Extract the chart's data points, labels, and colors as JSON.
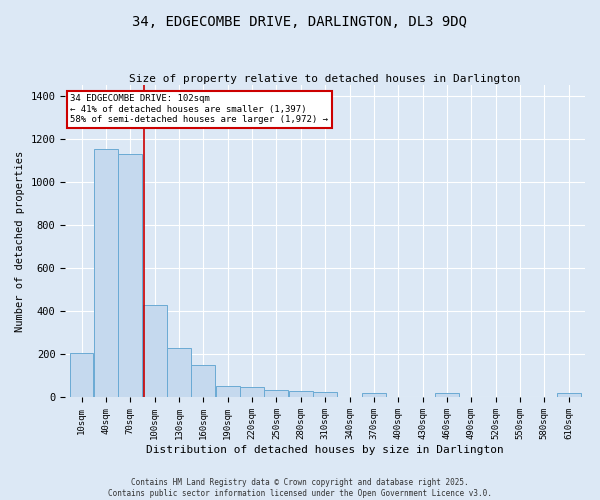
{
  "title": "34, EDGECOMBE DRIVE, DARLINGTON, DL3 9DQ",
  "subtitle": "Size of property relative to detached houses in Darlington",
  "xlabel": "Distribution of detached houses by size in Darlington",
  "ylabel": "Number of detached properties",
  "footer_line1": "Contains HM Land Registry data © Crown copyright and database right 2025.",
  "footer_line2": "Contains public sector information licensed under the Open Government Licence v3.0.",
  "bar_color": "#c5d9ee",
  "bar_edge_color": "#6aaad4",
  "background_color": "#dce8f5",
  "grid_color": "#ffffff",
  "vline_color": "#cc0000",
  "vline_x": 102,
  "annotation_text": "34 EDGECOMBE DRIVE: 102sqm\n← 41% of detached houses are smaller (1,397)\n58% of semi-detached houses are larger (1,972) →",
  "annotation_box_color": "#ffffff",
  "annotation_border_color": "#cc0000",
  "categories": [
    "10sqm",
    "40sqm",
    "70sqm",
    "100sqm",
    "130sqm",
    "160sqm",
    "190sqm",
    "220sqm",
    "250sqm",
    "280sqm",
    "310sqm",
    "340sqm",
    "370sqm",
    "400sqm",
    "430sqm",
    "460sqm",
    "490sqm",
    "520sqm",
    "550sqm",
    "580sqm",
    "610sqm"
  ],
  "bin_starts": [
    10,
    40,
    70,
    100,
    130,
    160,
    190,
    220,
    250,
    280,
    310,
    340,
    370,
    400,
    430,
    460,
    490,
    520,
    550,
    580,
    610
  ],
  "bin_width": 30,
  "values": [
    205,
    1150,
    1130,
    430,
    230,
    150,
    55,
    50,
    35,
    30,
    25,
    0,
    20,
    0,
    0,
    20,
    0,
    0,
    0,
    0,
    20
  ],
  "ylim": [
    0,
    1450
  ],
  "yticks": [
    0,
    200,
    400,
    600,
    800,
    1000,
    1200,
    1400
  ]
}
